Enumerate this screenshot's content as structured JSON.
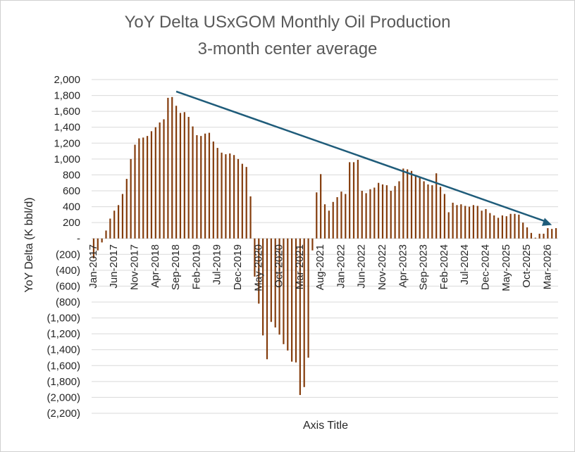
{
  "chart_data": {
    "type": "bar",
    "title": "YoY Delta USxGOM Monthly Oil Production",
    "subtitle": "3-month center average",
    "xlabel": "Axis Title",
    "ylabel": "YoY Delta (K bbl/d)",
    "ylim": [
      -2200,
      2000
    ],
    "ytick_values": [
      2000,
      1800,
      1600,
      1400,
      1200,
      1000,
      800,
      600,
      400,
      200,
      0,
      -200,
      -400,
      -600,
      -800,
      -1000,
      -1200,
      -1400,
      -1600,
      -1800,
      -2000,
      -2200
    ],
    "ytick_labels": [
      "2,000",
      "1,800",
      "1,600",
      "1,400",
      "1,200",
      "1,000",
      "800",
      "600",
      "400",
      "200",
      "-",
      "(200)",
      "(400)",
      "(600)",
      "(800)",
      "(1,000)",
      "(1,200)",
      "(1,400)",
      "(1,600)",
      "(1,800)",
      "(2,000)",
      "(2,200)"
    ],
    "xtick_labels": [
      "Jan-2017",
      "Jun-2017",
      "Nov-2017",
      "Apr-2018",
      "Sep-2018",
      "Feb-2019",
      "Jul-2019",
      "Dec-2019",
      "May-2020",
      "Oct-2020",
      "Mar-2021",
      "Aug-2021",
      "Jan-2022",
      "Jun-2022",
      "Nov-2022",
      "Apr-2023",
      "Sep-2023",
      "Feb-2024",
      "Jul-2024",
      "Dec-2024",
      "May-2025",
      "Oct-2025",
      "Mar-2026"
    ],
    "bar_color": "#843C0C",
    "trend_color": "#1F5C7A",
    "trendline": {
      "start": [
        "Sep-2018",
        1850
      ],
      "end": [
        "Apr-2026",
        170
      ]
    },
    "grid": true,
    "series": [
      {
        "values": [
          -250,
          -150,
          -50,
          100,
          250,
          350,
          420,
          560,
          750,
          1000,
          1180,
          1260,
          1270,
          1290,
          1350,
          1400,
          1460,
          1500,
          1770,
          1780,
          1670,
          1580,
          1590,
          1530,
          1410,
          1300,
          1290,
          1320,
          1330,
          1220,
          1140,
          1080,
          1060,
          1070,
          1050,
          1000,
          940,
          900,
          530,
          -480,
          -820,
          -1220,
          -1520,
          -1050,
          -1120,
          -1210,
          -1330,
          -1410,
          -1550,
          -1560,
          -1970,
          -1870,
          -1500,
          -150,
          580,
          810,
          430,
          350,
          460,
          520,
          590,
          560,
          960,
          960,
          990,
          600,
          570,
          620,
          640,
          700,
          680,
          670,
          600,
          660,
          720,
          880,
          870,
          850,
          800,
          770,
          720,
          680,
          670,
          820,
          650,
          560,
          330,
          450,
          420,
          430,
          410,
          400,
          420,
          410,
          350,
          370,
          320,
          290,
          260,
          290,
          280,
          310,
          310,
          300,
          200,
          140,
          70,
          10,
          60,
          60,
          130,
          120,
          130
        ]
      }
    ]
  }
}
